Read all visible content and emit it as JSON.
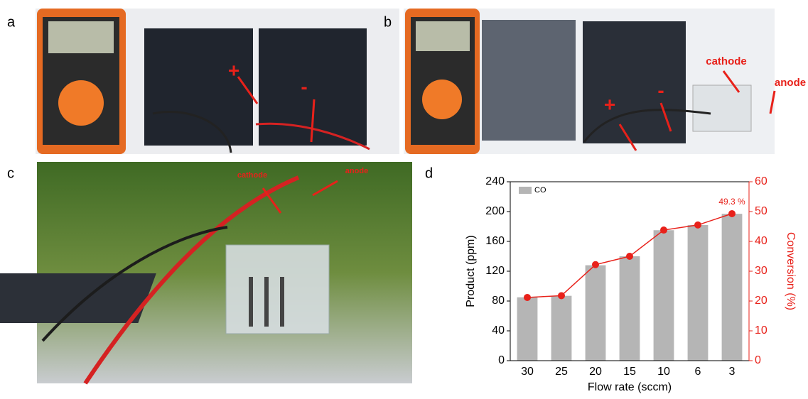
{
  "panels": {
    "a": {
      "label": "a",
      "annotations": [
        "+",
        "-"
      ]
    },
    "b": {
      "label": "b",
      "annotations": [
        "cathode",
        "anode",
        "+",
        "-"
      ]
    },
    "c": {
      "label": "c",
      "annotations": [
        "cathode",
        "anode"
      ]
    },
    "d": {
      "label": "d"
    }
  },
  "chart_data": {
    "type": "bar",
    "x_label": "Flow rate (sccm)",
    "y_label": "Product (ppm)",
    "y2_label": "Conversion (%)",
    "categories": [
      "30",
      "25",
      "20",
      "15",
      "10",
      "6",
      "3"
    ],
    "series": [
      {
        "name": "CO",
        "type": "bar",
        "color": "#b5b5b5",
        "values": [
          85,
          87,
          128,
          140,
          175,
          182,
          197
        ]
      },
      {
        "type": "line",
        "axis": "y2",
        "color": "#e8211a",
        "values": [
          21.2,
          21.8,
          32.2,
          35,
          43.8,
          45.5,
          49.3
        ],
        "value_labels": [
          null,
          null,
          null,
          null,
          null,
          null,
          "49.3 %"
        ]
      }
    ],
    "ylim": [
      0,
      240
    ],
    "yticks": [
      0,
      40,
      80,
      120,
      160,
      200,
      240
    ],
    "y2lim": [
      0,
      60
    ],
    "y2ticks": [
      0,
      10,
      20,
      30,
      40,
      50,
      60
    ],
    "y2color": "#e8211a",
    "legend": "top-left"
  }
}
